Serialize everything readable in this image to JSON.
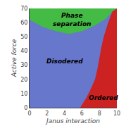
{
  "chart_data": {
    "type": "area",
    "xlabel": "Janus interaction",
    "ylabel": "Active force",
    "xlim": [
      0,
      10
    ],
    "ylim": [
      0,
      70
    ],
    "xticks": [
      0,
      2,
      4,
      6,
      8,
      10
    ],
    "yticks": [
      0,
      10,
      20,
      30,
      40,
      50,
      60,
      70
    ],
    "grid": false,
    "color": "#6677cc",
    "series": [
      {
        "color": "#cc2222",
        "x": [
          10,
          10,
          9.5,
          9.0,
          8.5,
          8.2,
          8.0,
          7.8,
          7.5,
          7.0,
          6.5,
          6.0,
          5.8
        ],
        "values": [
          0,
          70,
          68,
          60,
          50,
          42,
          35,
          28,
          20,
          13,
          7,
          2,
          0
        ]
      },
      {
        "color": "#44bb44",
        "x": [
          0,
          0,
          1.5,
          3.0,
          4.5,
          6.0,
          7.5,
          8.8,
          9.5,
          10
        ],
        "values": [
          70,
          62,
          57,
          54,
          52,
          54,
          58,
          63,
          68,
          70
        ]
      }
    ],
    "annotations": [
      {
        "text": "Disodered",
        "x": 4.0,
        "y": 33
      },
      {
        "text": "Phase\nseparation",
        "x": 4.8,
        "y": 62
      },
      {
        "text": "Ordered",
        "x": 8.5,
        "y": 7
      }
    ]
  }
}
